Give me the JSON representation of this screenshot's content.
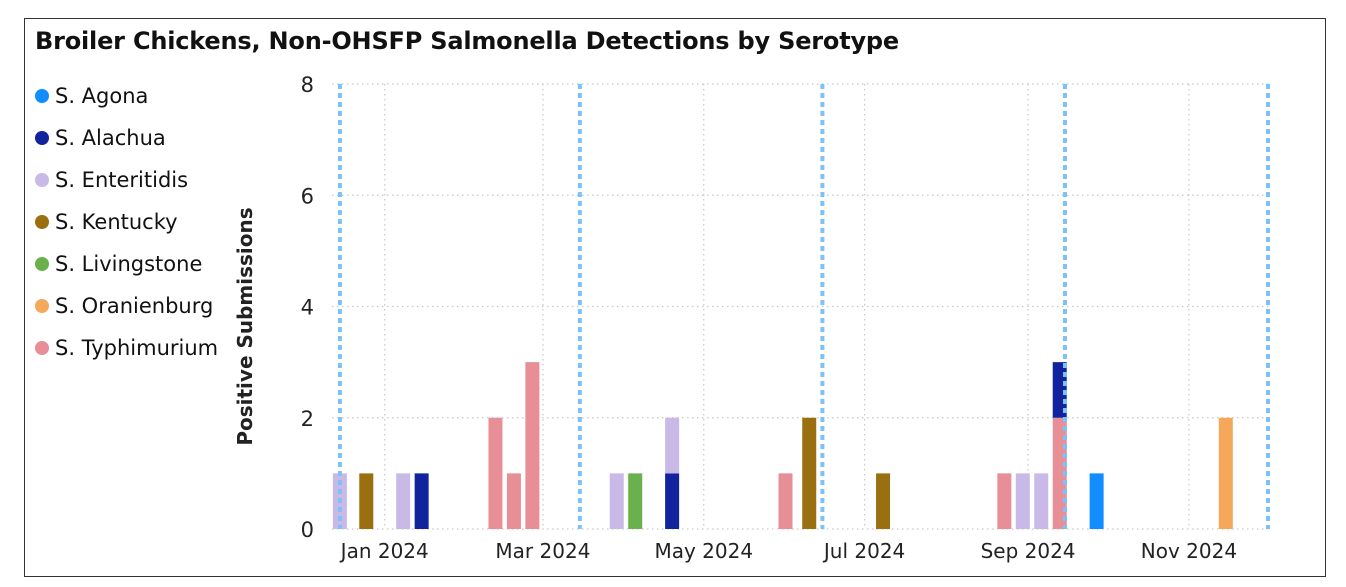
{
  "title": "Broiler Chickens, Non-OHSFP Salmonella Detections by Serotype",
  "legend": [
    {
      "name": "S. Agona",
      "color": "#118dff"
    },
    {
      "name": "S. Alachua",
      "color": "#12239e"
    },
    {
      "name": "S. Enteritidis",
      "color": "#c8b9e6"
    },
    {
      "name": "S. Kentucky",
      "color": "#996f10"
    },
    {
      "name": "S. Livingstone",
      "color": "#6ab04c"
    },
    {
      "name": "S. Oranienburg",
      "color": "#f5a85a"
    },
    {
      "name": "S. Typhimurium",
      "color": "#e88e96"
    }
  ],
  "chart_data": {
    "type": "bar",
    "title": "Broiler Chickens, Non-OHSFP Salmonella Detections by Serotype",
    "xlabel": "",
    "ylabel": "Positive Submissions",
    "ylim": [
      0,
      8
    ],
    "yticks": [
      "0",
      "2",
      "4",
      "6",
      "8"
    ],
    "xticks": [
      "Jan 2024",
      "Mar 2024",
      "May 2024",
      "Jul 2024",
      "Sep 2024",
      "Nov 2024"
    ],
    "xtick_dates": [
      "2024-01-01",
      "2024-03-01",
      "2024-05-01",
      "2024-07-01",
      "2024-09-01",
      "2024-11-01"
    ],
    "x_range": [
      "2023-12-12",
      "2024-12-01"
    ],
    "grid": true,
    "legend_position": "left",
    "reference_lines": [
      "2023-12-15",
      "2024-03-15",
      "2024-06-15",
      "2024-09-15",
      "2024-12-01"
    ],
    "stacked": true,
    "bars": [
      {
        "date": "2023-12-15",
        "segments": [
          {
            "series": "S. Enteritidis",
            "value": 1
          }
        ]
      },
      {
        "date": "2023-12-25",
        "segments": [
          {
            "series": "S. Kentucky",
            "value": 1
          }
        ]
      },
      {
        "date": "2024-01-08",
        "segments": [
          {
            "series": "S. Enteritidis",
            "value": 1
          }
        ]
      },
      {
        "date": "2024-01-15",
        "segments": [
          {
            "series": "S. Alachua",
            "value": 1
          }
        ]
      },
      {
        "date": "2024-02-12",
        "segments": [
          {
            "series": "S. Typhimurium",
            "value": 2
          }
        ]
      },
      {
        "date": "2024-02-19",
        "segments": [
          {
            "series": "S. Typhimurium",
            "value": 1
          }
        ]
      },
      {
        "date": "2024-02-26",
        "segments": [
          {
            "series": "S. Typhimurium",
            "value": 3
          }
        ]
      },
      {
        "date": "2024-03-29",
        "segments": [
          {
            "series": "S. Enteritidis",
            "value": 1
          }
        ]
      },
      {
        "date": "2024-04-05",
        "segments": [
          {
            "series": "S. Livingstone",
            "value": 1
          }
        ]
      },
      {
        "date": "2024-04-19",
        "segments": [
          {
            "series": "S. Alachua",
            "value": 1
          },
          {
            "series": "S. Enteritidis",
            "value": 1
          }
        ]
      },
      {
        "date": "2024-06-01",
        "segments": [
          {
            "series": "S. Typhimurium",
            "value": 1
          }
        ]
      },
      {
        "date": "2024-06-10",
        "segments": [
          {
            "series": "S. Kentucky",
            "value": 2
          }
        ]
      },
      {
        "date": "2024-07-08",
        "segments": [
          {
            "series": "S. Kentucky",
            "value": 1
          }
        ]
      },
      {
        "date": "2024-08-23",
        "segments": [
          {
            "series": "S. Typhimurium",
            "value": 1
          }
        ]
      },
      {
        "date": "2024-08-30",
        "segments": [
          {
            "series": "S. Enteritidis",
            "value": 1
          }
        ]
      },
      {
        "date": "2024-09-06",
        "segments": [
          {
            "series": "S. Enteritidis",
            "value": 1
          }
        ]
      },
      {
        "date": "2024-09-13",
        "segments": [
          {
            "series": "S. Typhimurium",
            "value": 2
          },
          {
            "series": "S. Alachua",
            "value": 1
          }
        ]
      },
      {
        "date": "2024-09-27",
        "segments": [
          {
            "series": "S. Agona",
            "value": 1
          }
        ]
      },
      {
        "date": "2024-11-15",
        "segments": [
          {
            "series": "S. Oranienburg",
            "value": 2
          }
        ]
      }
    ]
  }
}
